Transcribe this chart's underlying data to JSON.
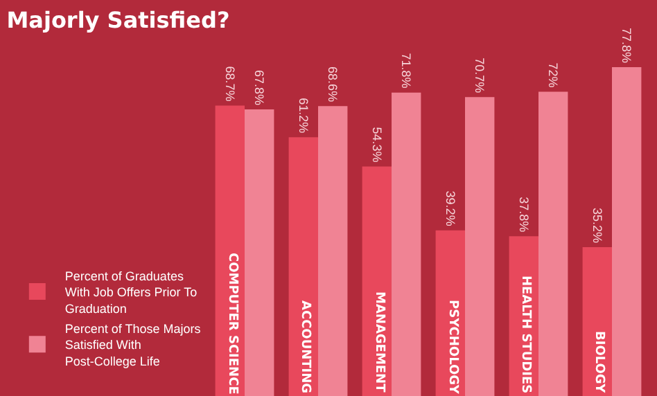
{
  "chart_data": {
    "type": "bar",
    "title": "Majorly Satisfied?",
    "categories": [
      "COMPUTER SCIENCE",
      "ACCOUNTING",
      "MANAGEMENT",
      "PSYCHOLOGY",
      "HEALTH STUDIES",
      "BIOLOGY"
    ],
    "series": [
      {
        "name": "Percent of Graduates With Job Offers Prior To Graduation",
        "color": "#e8485c",
        "values": [
          68.7,
          61.2,
          54.3,
          39.2,
          37.8,
          35.2
        ],
        "value_labels": [
          "68.7%",
          "61.2%",
          "54.3%",
          "39.2%",
          "37.8%",
          "35.2%"
        ]
      },
      {
        "name": "Percent of Those Majors Satisfied With Post-College Life",
        "color": "#f08394",
        "values": [
          67.8,
          68.6,
          71.8,
          70.7,
          72,
          77.8
        ],
        "value_labels": [
          "67.8%",
          "68.6%",
          "71.8%",
          "70.7%",
          "72%",
          "77.8%"
        ]
      }
    ],
    "legend": "left",
    "grid": false
  }
}
